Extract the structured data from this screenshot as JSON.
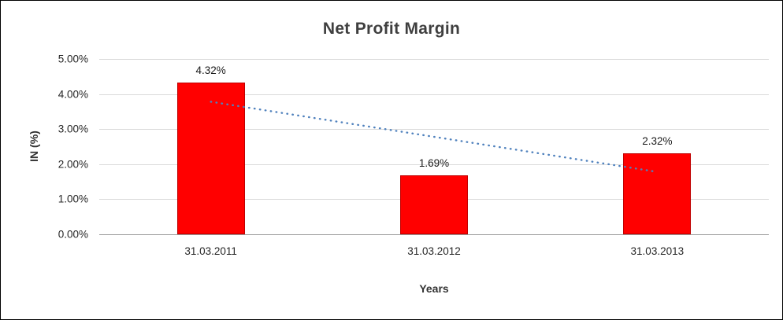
{
  "chart_data": {
    "type": "bar",
    "title": "Net Profit Margin",
    "categories": [
      "31.03.2011",
      "31.03.2012",
      "31.03.2013"
    ],
    "values": [
      4.32,
      1.69,
      2.32
    ],
    "bar_labels": [
      "4.32%",
      "1.69%",
      "2.32%"
    ],
    "xlabel": "Years",
    "ylabel": "IN (%)",
    "ylim": [
      0,
      5
    ],
    "ytick_step": 1,
    "ytick_labels": [
      "0.00%",
      "1.00%",
      "2.00%",
      "3.00%",
      "4.00%",
      "5.00%"
    ],
    "grid": true,
    "legend": "none",
    "colors": {
      "bar": "#FF0000",
      "bar_border": "#C00000",
      "trendline": "#4F81BD",
      "gridline": "#D9D9D9",
      "axis_line": "#9B9B9B",
      "title_text": "#3F3F3F",
      "tick_text": "#262626"
    },
    "trendline": {
      "style": "dotted",
      "start_value": 3.78,
      "end_value": 1.78
    }
  }
}
